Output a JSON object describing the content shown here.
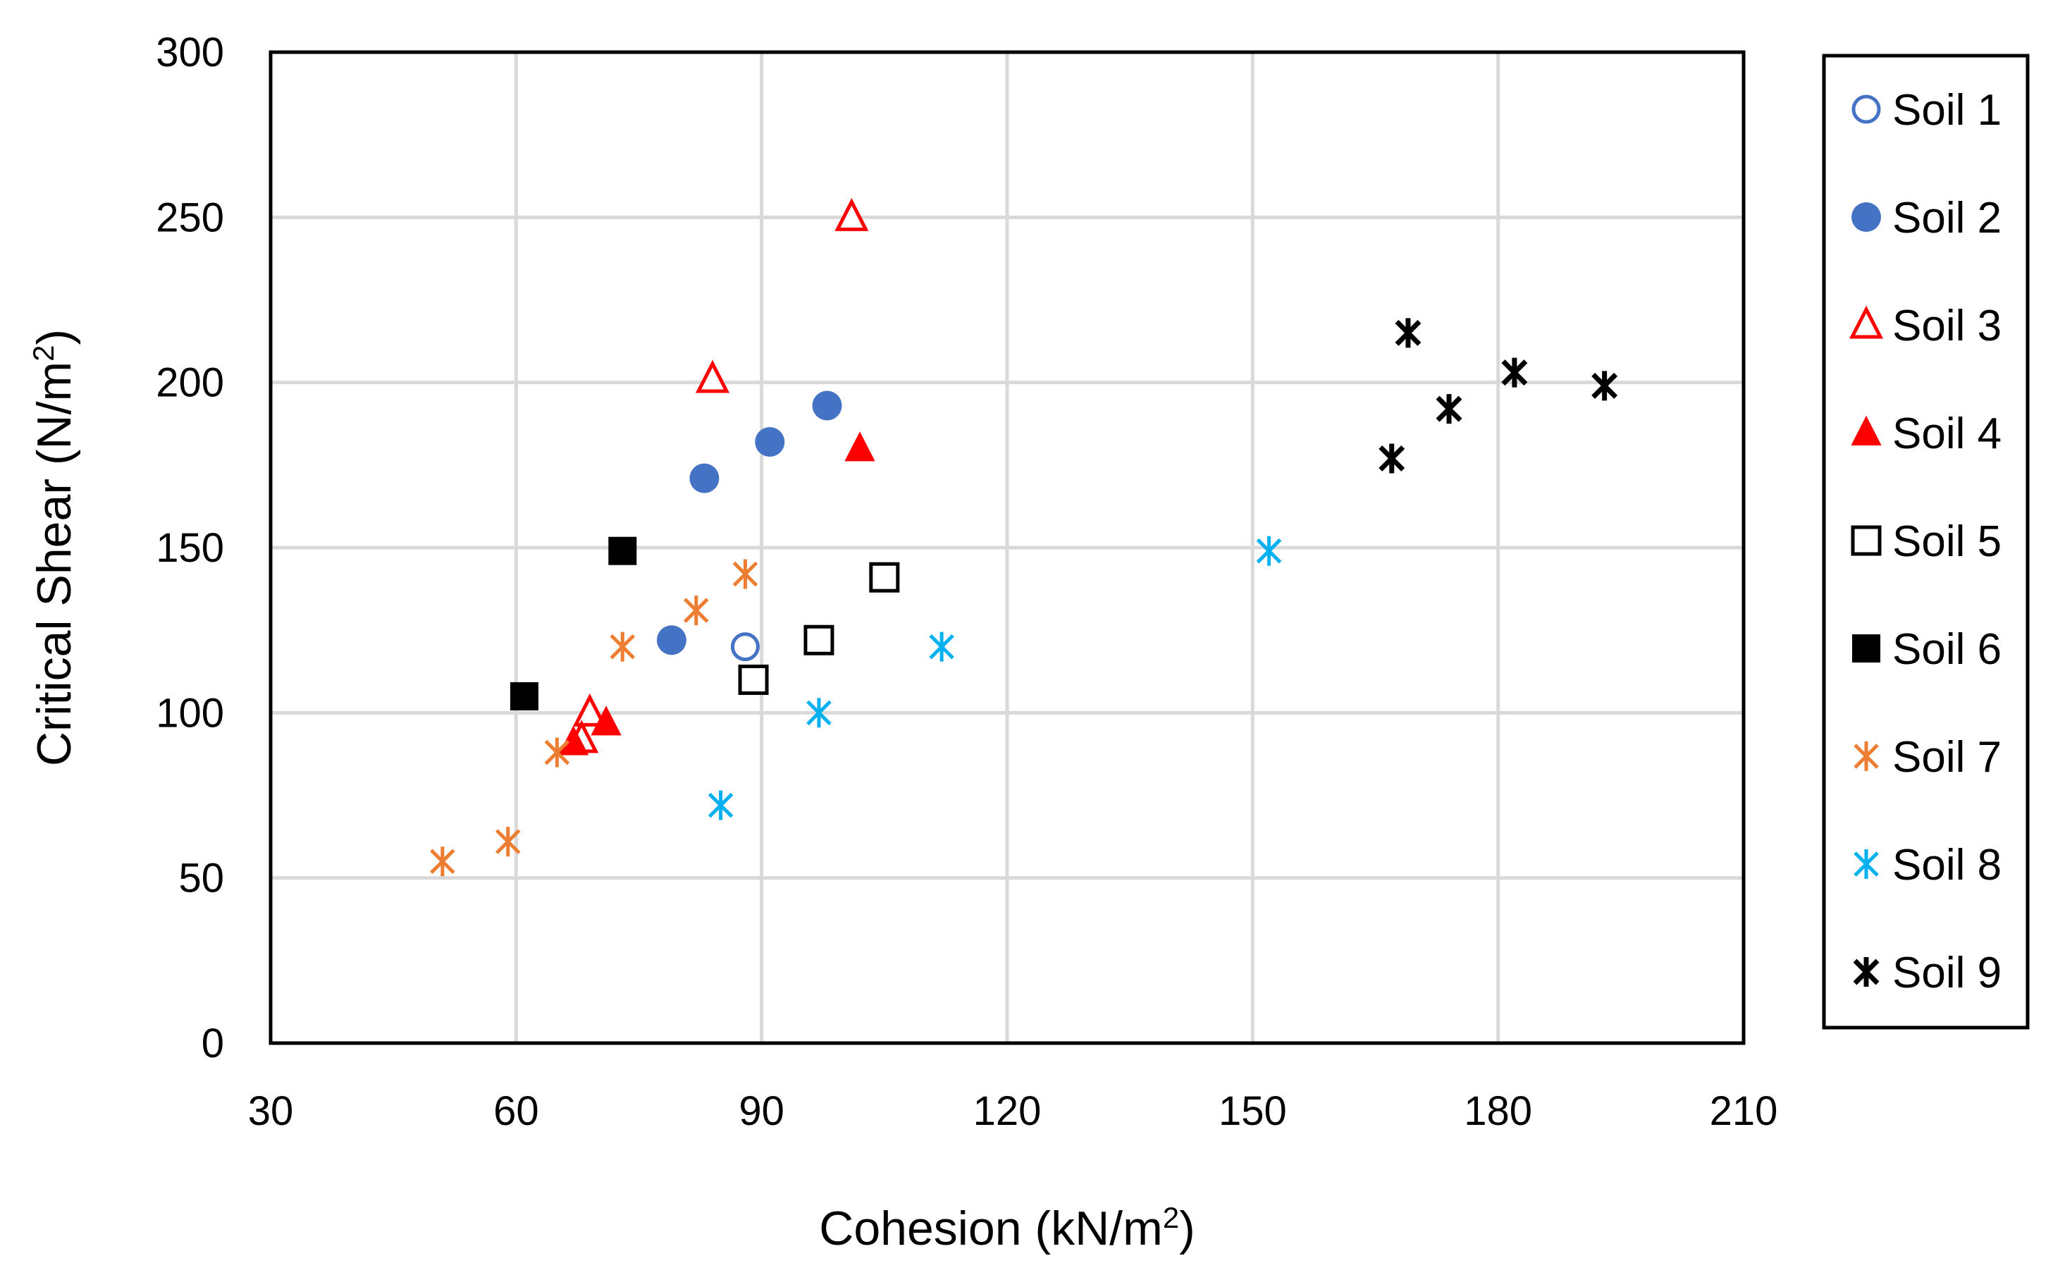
{
  "chart_data": {
    "type": "scatter",
    "title": "",
    "xlabel": "Cohesion (kN/m",
    "xlabel_sup": "2",
    "xlabel_suffix": ")",
    "ylabel": "Critical Shear (N/m",
    "ylabel_sup": "2",
    "ylabel_suffix": ")",
    "xlim": [
      30,
      210
    ],
    "ylim": [
      0,
      300
    ],
    "xticks": [
      30,
      60,
      90,
      120,
      150,
      180,
      210
    ],
    "yticks": [
      0,
      50,
      100,
      150,
      200,
      250,
      300
    ],
    "grid": true,
    "legend_position": "right",
    "series": [
      {
        "name": "Soil 1",
        "marker": "circle-open",
        "color": "#4472C4",
        "x": [
          88
        ],
        "y": [
          120
        ]
      },
      {
        "name": "Soil 2",
        "marker": "circle-filled",
        "color": "#4472C4",
        "x": [
          79,
          83,
          91,
          98
        ],
        "y": [
          122,
          171,
          182,
          193
        ]
      },
      {
        "name": "Soil 3",
        "marker": "triangle-open",
        "color": "#FF0000",
        "x": [
          101,
          84,
          69,
          68
        ],
        "y": [
          250,
          201,
          100,
          92
        ]
      },
      {
        "name": "Soil 4",
        "marker": "triangle-filled",
        "color": "#FF0000",
        "x": [
          102,
          71,
          67
        ],
        "y": [
          180,
          97,
          91
        ]
      },
      {
        "name": "Soil 5",
        "marker": "square-open",
        "color": "#000000",
        "x": [
          105,
          97,
          89
        ],
        "y": [
          141,
          122,
          110
        ]
      },
      {
        "name": "Soil 6",
        "marker": "square-filled",
        "color": "#000000",
        "x": [
          73,
          61
        ],
        "y": [
          149,
          105
        ]
      },
      {
        "name": "Soil 7",
        "marker": "asterisk",
        "color": "#ED7D31",
        "x": [
          88,
          82,
          73,
          65,
          59,
          51
        ],
        "y": [
          142,
          131,
          120,
          88,
          61,
          55
        ]
      },
      {
        "name": "Soil 8",
        "marker": "asterisk",
        "color": "#00B0F0",
        "x": [
          152,
          112,
          97,
          85
        ],
        "y": [
          149,
          120,
          100,
          72
        ]
      },
      {
        "name": "Soil 9",
        "marker": "asterisk-bold",
        "color": "#000000",
        "x": [
          169,
          182,
          193,
          174,
          167
        ],
        "y": [
          215,
          203,
          199,
          192,
          177
        ]
      }
    ]
  }
}
